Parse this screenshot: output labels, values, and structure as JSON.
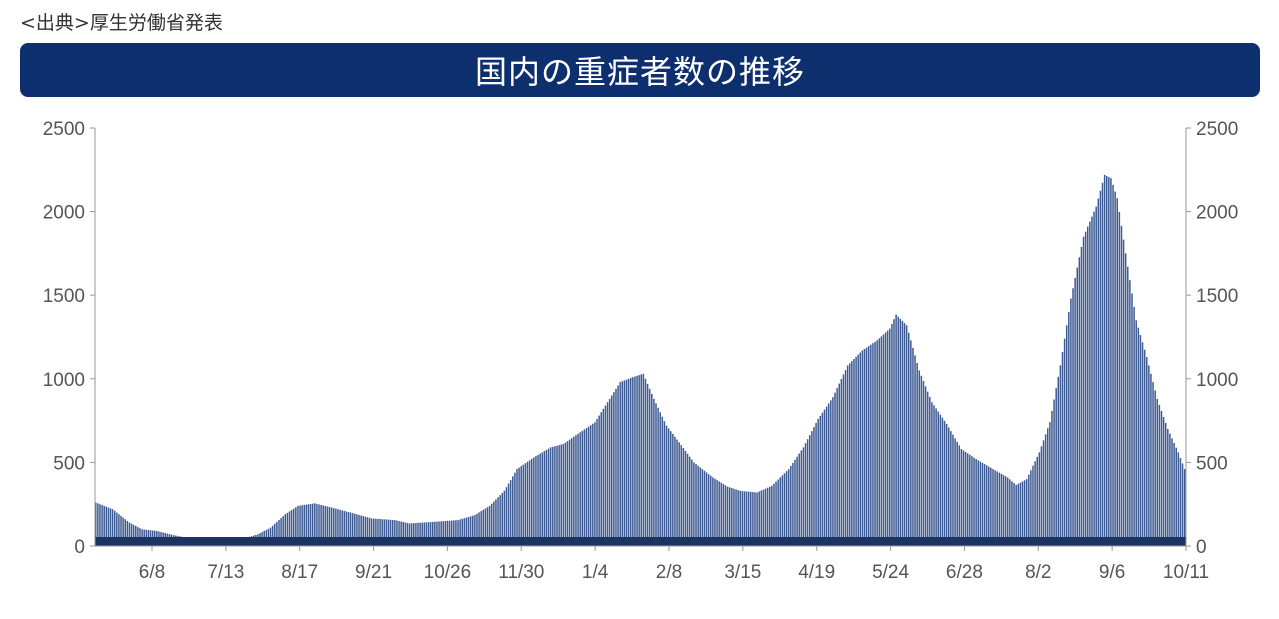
{
  "source_note": "<出典>厚生労働省発表",
  "chart_data": {
    "type": "bar",
    "title": "国内の重症者数の推移",
    "xlabel": "",
    "ylabel": "",
    "ylim": [
      0,
      2500
    ],
    "y_ticks": [
      "0",
      "500",
      "1000",
      "1500",
      "2000",
      "2500"
    ],
    "x_ticks": [
      "6/8",
      "7/13",
      "8/17",
      "9/21",
      "10/26",
      "11/30",
      "1/4",
      "2/8",
      "3/15",
      "4/19",
      "5/24",
      "6/28",
      "8/2",
      "9/6",
      "10/11"
    ],
    "grid": false,
    "legend": "none",
    "bar_color": "#3d5a92",
    "anchors": [
      [
        "5/12",
        260
      ],
      [
        "5/20",
        220
      ],
      [
        "5/28",
        140
      ],
      [
        "6/3",
        100
      ],
      [
        "6/10",
        90
      ],
      [
        "6/18",
        65
      ],
      [
        "6/26",
        45
      ],
      [
        "7/5",
        35
      ],
      [
        "7/13",
        35
      ],
      [
        "7/20",
        40
      ],
      [
        "7/28",
        70
      ],
      [
        "8/3",
        110
      ],
      [
        "8/10",
        190
      ],
      [
        "8/16",
        240
      ],
      [
        "8/24",
        255
      ],
      [
        "9/1",
        230
      ],
      [
        "9/10",
        200
      ],
      [
        "9/20",
        165
      ],
      [
        "10/1",
        155
      ],
      [
        "10/8",
        135
      ],
      [
        "10/20",
        145
      ],
      [
        "10/31",
        155
      ],
      [
        "11/8",
        185
      ],
      [
        "11/15",
        240
      ],
      [
        "11/22",
        330
      ],
      [
        "11/28",
        460
      ],
      [
        "12/6",
        530
      ],
      [
        "12/14",
        590
      ],
      [
        "12/20",
        610
      ],
      [
        "12/28",
        680
      ],
      [
        "1/4",
        740
      ],
      [
        "1/10",
        860
      ],
      [
        "1/16",
        980
      ],
      [
        "1/22",
        1010
      ],
      [
        "1/27",
        1030
      ],
      [
        "2/1",
        880
      ],
      [
        "2/7",
        720
      ],
      [
        "2/13",
        620
      ],
      [
        "2/20",
        500
      ],
      [
        "3/1",
        410
      ],
      [
        "3/8",
        355
      ],
      [
        "3/14",
        330
      ],
      [
        "3/22",
        320
      ],
      [
        "3/29",
        360
      ],
      [
        "4/6",
        460
      ],
      [
        "4/13",
        590
      ],
      [
        "4/20",
        760
      ],
      [
        "4/27",
        890
      ],
      [
        "5/4",
        1080
      ],
      [
        "5/11",
        1170
      ],
      [
        "5/18",
        1230
      ],
      [
        "5/24",
        1300
      ],
      [
        "5/27",
        1385
      ],
      [
        "6/1",
        1320
      ],
      [
        "6/7",
        1050
      ],
      [
        "6/13",
        860
      ],
      [
        "6/20",
        730
      ],
      [
        "6/27",
        580
      ],
      [
        "7/4",
        520
      ],
      [
        "7/12",
        460
      ],
      [
        "7/19",
        410
      ],
      [
        "7/23",
        365
      ],
      [
        "7/28",
        400
      ],
      [
        "8/3",
        560
      ],
      [
        "8/8",
        740
      ],
      [
        "8/13",
        1080
      ],
      [
        "8/18",
        1480
      ],
      [
        "8/24",
        1850
      ],
      [
        "8/30",
        2030
      ],
      [
        "9/3",
        2220
      ],
      [
        "9/6",
        2200
      ],
      [
        "9/9",
        2080
      ],
      [
        "9/13",
        1750
      ],
      [
        "9/18",
        1350
      ],
      [
        "9/23",
        1130
      ],
      [
        "9/28",
        880
      ],
      [
        "10/3",
        700
      ],
      [
        "10/8",
        560
      ],
      [
        "10/11",
        460
      ]
    ]
  }
}
